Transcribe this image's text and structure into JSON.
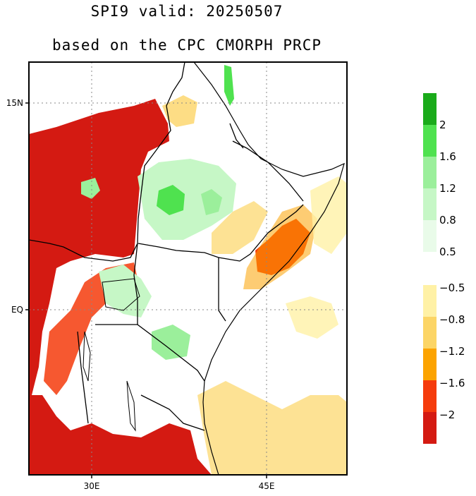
{
  "title": "SPI9   valid: 20250507",
  "subtitle": "based on the CPC CMORPH PRCP",
  "map": {
    "lat_labels": [
      "15N",
      "EQ"
    ],
    "lon_labels": [
      "30E",
      "45E"
    ]
  },
  "colorbar": {
    "positive": [
      {
        "color": "#1aab1a",
        "label": "2"
      },
      {
        "color": "#4fe24f",
        "label": "1.6"
      },
      {
        "color": "#9bef9b",
        "label": "1.2"
      },
      {
        "color": "#c6f7c6",
        "label": "0.8"
      },
      {
        "color": "#e9fbe9",
        "label": "0.5"
      }
    ],
    "negative": [
      {
        "color": "#fff1a6",
        "label": "−0.5"
      },
      {
        "color": "#fcd566",
        "label": "−0.8"
      },
      {
        "color": "#fca300",
        "label": "−1.2"
      },
      {
        "color": "#f53b0c",
        "label": "−1.6"
      },
      {
        "color": "#d41a12",
        "label": "−2"
      }
    ]
  }
}
